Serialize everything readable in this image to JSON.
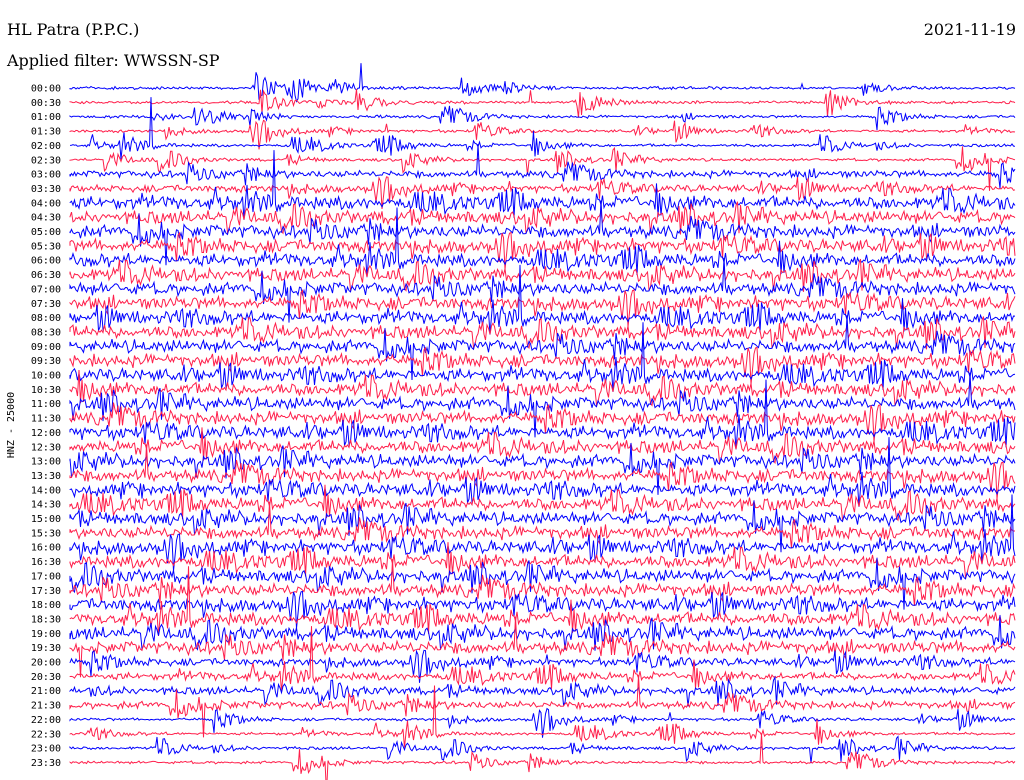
{
  "header": {
    "station": "HL Patra (P.P.C.)",
    "date": "2021-11-19",
    "filter": "Applied filter: WWSSN-SP"
  },
  "chart_data": {
    "type": "line",
    "title": "HL Patra (P.P.C.)",
    "subtitle": "Applied filter: WWSSN-SP",
    "date": "2021-11-19",
    "ylabel": "HNZ - 25000",
    "xlabel": "",
    "grid": false,
    "rows": [
      "00:00",
      "00:30",
      "01:00",
      "01:30",
      "02:00",
      "02:30",
      "03:00",
      "03:30",
      "04:00",
      "04:30",
      "05:00",
      "05:30",
      "06:00",
      "06:30",
      "07:00",
      "07:30",
      "08:00",
      "08:30",
      "09:00",
      "09:30",
      "10:00",
      "10:30",
      "11:00",
      "11:30",
      "12:00",
      "12:30",
      "13:00",
      "13:30",
      "14:00",
      "14:30",
      "15:00",
      "15:30",
      "16:00",
      "16:30",
      "17:00",
      "17:30",
      "18:00",
      "18:30",
      "19:00",
      "19:30",
      "20:00",
      "20:30",
      "21:00",
      "21:30",
      "22:00",
      "22:30",
      "23:00",
      "23:30"
    ],
    "colors": [
      "#0000ff",
      "#ff1f4b"
    ]
  }
}
